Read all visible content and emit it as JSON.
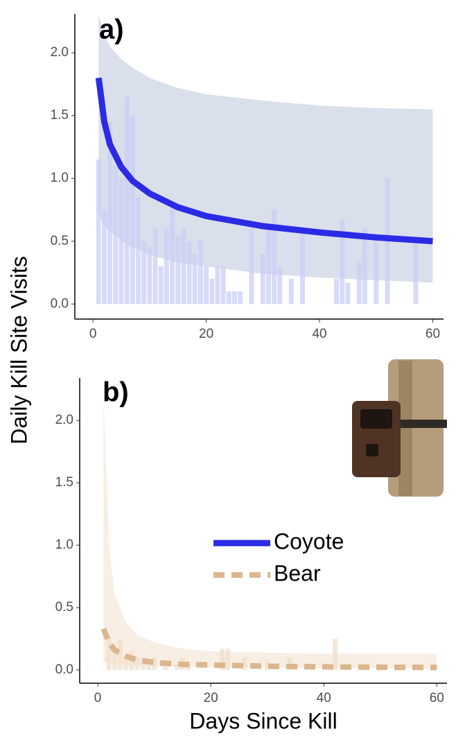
{
  "chart_data": [
    {
      "type": "line",
      "label": "a)",
      "ylabel": "Daily Kill Site Visits",
      "xlim": [
        -3.2,
        61.9
      ],
      "ylim": [
        -0.12,
        2.31
      ],
      "xticks": [
        0,
        20,
        40,
        60
      ],
      "yticks": [
        {
          "value": 0,
          "label": "0.0"
        },
        {
          "value": 0.5,
          "label": "0.5"
        },
        {
          "value": 1,
          "label": "1.0"
        },
        {
          "value": 1.5,
          "label": "1.5"
        },
        {
          "value": 2,
          "label": "2.0"
        }
      ],
      "bars": {
        "color": "#c9cdf6",
        "x": [
          1,
          2,
          3,
          4,
          5,
          6,
          7,
          8,
          9,
          10,
          11,
          12,
          13,
          14,
          15,
          16,
          17,
          18,
          19,
          20,
          21,
          22,
          23,
          24,
          25,
          26,
          28,
          30,
          31,
          32,
          33,
          35,
          37,
          43,
          44,
          45,
          47,
          48,
          50,
          52,
          57
        ],
        "values": [
          1.15,
          0.75,
          1.45,
          1.1,
          1.0,
          1.65,
          1.5,
          0.85,
          0.5,
          0.45,
          0.6,
          0.3,
          0.6,
          0.8,
          0.55,
          0.6,
          0.5,
          0.4,
          0.5,
          0.3,
          0.2,
          0.3,
          0.3,
          0.1,
          0.1,
          0.1,
          0.6,
          0.4,
          0.6,
          0.75,
          0.3,
          0.2,
          0.6,
          0.2,
          0.67,
          0.17,
          0.33,
          0.6,
          0.5,
          1.0,
          0.5
        ]
      },
      "series": [
        {
          "name": "Coyote",
          "color": "#2b2be6",
          "band_color": "#d3dbe8",
          "dashed": false,
          "x": [
            1,
            2,
            3,
            5,
            7,
            10,
            15,
            20,
            30,
            40,
            50,
            60
          ],
          "values": [
            1.8,
            1.45,
            1.27,
            1.09,
            0.98,
            0.88,
            0.77,
            0.7,
            0.62,
            0.57,
            0.53,
            0.5
          ],
          "upper": [
            2.3,
            2.15,
            2.05,
            1.95,
            1.88,
            1.8,
            1.72,
            1.67,
            1.62,
            1.58,
            1.56,
            1.55
          ],
          "lower": [
            0.72,
            0.62,
            0.58,
            0.5,
            0.45,
            0.39,
            0.33,
            0.3,
            0.24,
            0.21,
            0.19,
            0.17
          ]
        }
      ]
    },
    {
      "type": "line",
      "label": "b)",
      "xlabel": "Days Since Kill",
      "xlim": [
        -3.2,
        61.8
      ],
      "ylim": [
        -0.106,
        2.34
      ],
      "xticks": [
        0,
        20,
        40,
        60
      ],
      "yticks": [
        {
          "value": 0,
          "label": "0.0"
        },
        {
          "value": 0.5,
          "label": "0.5"
        },
        {
          "value": 1,
          "label": "1.0"
        },
        {
          "value": 1.5,
          "label": "1.5"
        },
        {
          "value": 2,
          "label": "2.0"
        }
      ],
      "bars": {
        "color": "#f0dfcc",
        "x": [
          2,
          3,
          4,
          5,
          6,
          7,
          8,
          9,
          10,
          12,
          14,
          15,
          16,
          22,
          23,
          26,
          30,
          34,
          38,
          42
        ],
        "values": [
          0.25,
          0.15,
          0.25,
          0.1,
          0.15,
          0.1,
          0.1,
          0.05,
          0.1,
          0.05,
          0.05,
          0.1,
          0.05,
          0.17,
          0.17,
          0.1,
          0.08,
          0.1,
          0.05,
          0.25
        ]
      },
      "series": [
        {
          "name": "Bear",
          "color": "#dbb68e",
          "band_color": "#f7ebde",
          "dashed": true,
          "x": [
            1,
            2,
            3,
            5,
            7,
            10,
            15,
            20,
            30,
            40,
            50,
            60
          ],
          "values": [
            0.33,
            0.22,
            0.16,
            0.11,
            0.08,
            0.06,
            0.045,
            0.04,
            0.03,
            0.025,
            0.022,
            0.02
          ],
          "upper": [
            2.2,
            1.0,
            0.6,
            0.38,
            0.28,
            0.22,
            0.17,
            0.15,
            0.14,
            0.13,
            0.13,
            0.13
          ],
          "lower": [
            0.06,
            0.05,
            0.045,
            0.04,
            0.035,
            0.03,
            0.025,
            0.02,
            0.02,
            0.015,
            0.015,
            0.01
          ]
        }
      ]
    }
  ]
}
